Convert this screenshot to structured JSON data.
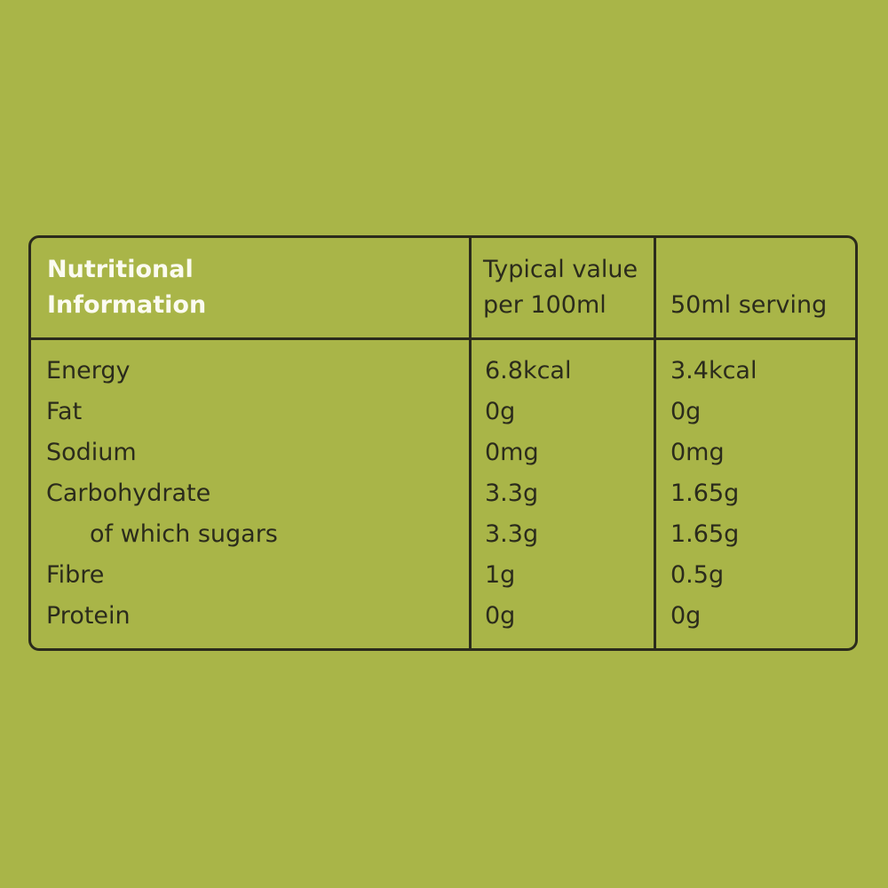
{
  "header": {
    "title_line1": "Nutritional",
    "title_line2": "Information",
    "col1_line1": "Typical value",
    "col1_line2": "per 100ml",
    "col2": "50ml serving"
  },
  "rows": [
    {
      "label": "Energy",
      "per100": "6.8kcal",
      "serving": "3.4kcal"
    },
    {
      "label": "Fat",
      "per100": "0g",
      "serving": "0g"
    },
    {
      "label": "Sodium",
      "per100": "0mg",
      "serving": "0mg"
    },
    {
      "label": "Carbohydrate",
      "per100": "3.3g",
      "serving": "1.65g"
    },
    {
      "label": "of which sugars",
      "per100": "3.3g",
      "serving": "1.65g",
      "indent": true
    },
    {
      "label": "Fibre",
      "per100": "1g",
      "serving": "0.5g"
    },
    {
      "label": "Protein",
      "per100": "0g",
      "serving": "0g"
    }
  ],
  "colors": {
    "background": "#a9b548",
    "text": "#2b2b1c",
    "title": "#fbfbf0"
  }
}
